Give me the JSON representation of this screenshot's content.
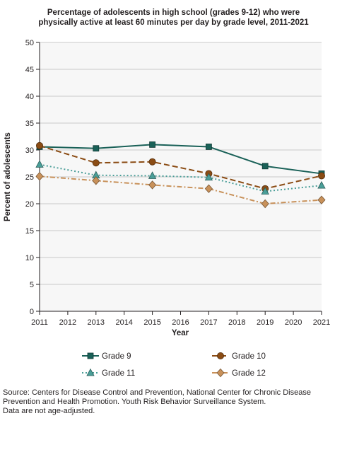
{
  "chart_data": {
    "type": "line",
    "title_lines": [
      "Percentage of adolescents in high school (grades 9-12) who were",
      "physically active at least 60 minutes per day by grade level, 2011-2021"
    ],
    "xlabel": "Year",
    "ylabel": "Percent of adolescents",
    "x_ticks": [
      "2011",
      "2012",
      "2013",
      "2014",
      "2015",
      "2016",
      "2017",
      "2018",
      "2019",
      "2020",
      "2021"
    ],
    "xlim": [
      2011,
      2021
    ],
    "ylim": [
      0,
      50
    ],
    "y_ticks": [
      "0",
      "5",
      "10",
      "15",
      "20",
      "25",
      "30",
      "35",
      "40",
      "45",
      "50"
    ],
    "grid": "horizontal",
    "legend_position": "bottom",
    "x": [
      2011,
      2013,
      2015,
      2017,
      2019,
      2021
    ],
    "series": [
      {
        "name": "Grade 9",
        "values": [
          30.6,
          30.3,
          31.0,
          30.6,
          27.0,
          25.6
        ],
        "color": "#1a6158",
        "line": "solid",
        "marker": "square-marker-icon"
      },
      {
        "name": "Grade 10",
        "values": [
          30.8,
          27.6,
          27.8,
          25.6,
          22.8,
          25.2
        ],
        "color": "#8b4c14",
        "line": "dashed",
        "marker": "circle-marker-icon"
      },
      {
        "name": "Grade 11",
        "values": [
          27.3,
          25.3,
          25.2,
          24.9,
          22.3,
          23.4
        ],
        "color": "#4a9e98",
        "line": "dotted",
        "marker": "triangle-marker-icon"
      },
      {
        "name": "Grade 12",
        "values": [
          25.1,
          24.3,
          23.5,
          22.8,
          20.0,
          20.7
        ],
        "color": "#c8915a",
        "line": "dashdot",
        "marker": "diamond-marker-icon"
      }
    ]
  },
  "source": {
    "lines": [
      "Source: Centers for Disease Control and Prevention, National Center for Chronic Disease",
      "Prevention and Health Promotion. Youth Risk Behavior Surveillance System.",
      "Data are not age-adjusted."
    ]
  }
}
